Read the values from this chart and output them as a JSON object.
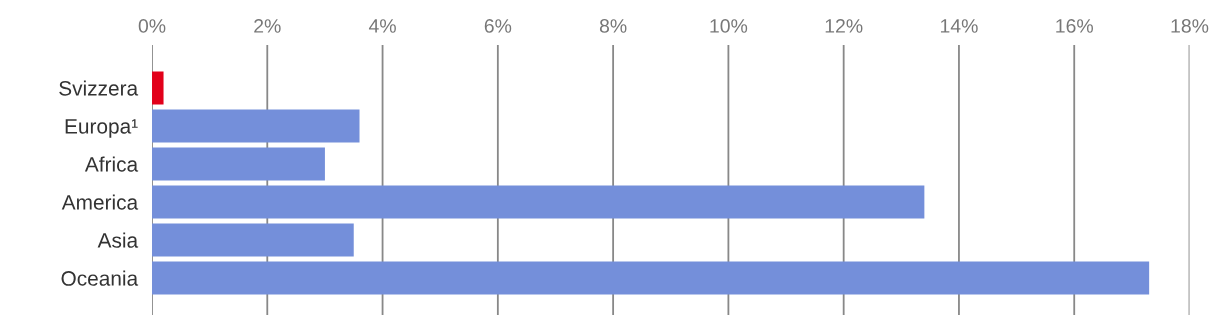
{
  "chart_data": {
    "type": "bar",
    "orientation": "horizontal",
    "categories": [
      "Svizzera",
      "Europa¹",
      "Africa",
      "America",
      "Asia",
      "Oceania"
    ],
    "values": [
      0.2,
      3.6,
      3.0,
      13.4,
      3.5,
      17.3
    ],
    "colors": [
      "#e2001a",
      "#748fda",
      "#748fda",
      "#748fda",
      "#748fda",
      "#748fda"
    ],
    "xlim": [
      0,
      18
    ],
    "xticks": [
      {
        "value": 0,
        "label": "0%"
      },
      {
        "value": 2,
        "label": "2%"
      },
      {
        "value": 4,
        "label": "4%"
      },
      {
        "value": 6,
        "label": "6%"
      },
      {
        "value": 8,
        "label": "8%"
      },
      {
        "value": 10,
        "label": "10%"
      },
      {
        "value": 12,
        "label": "12%"
      },
      {
        "value": 14,
        "label": "14%"
      },
      {
        "value": 16,
        "label": "16%"
      },
      {
        "value": 18,
        "label": "18%"
      }
    ],
    "grid": "x"
  }
}
